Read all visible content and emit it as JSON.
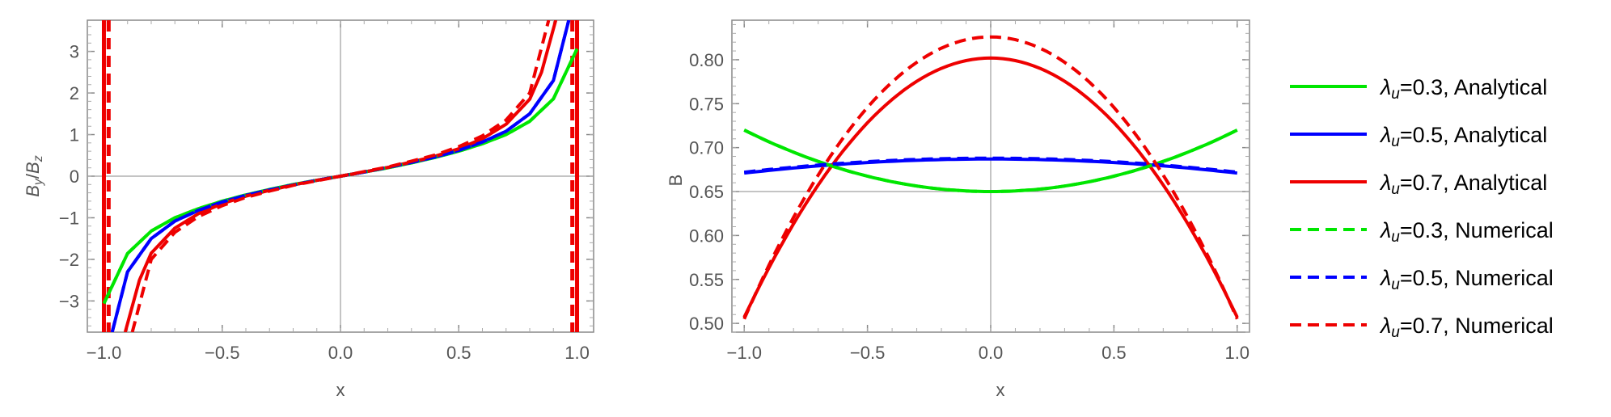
{
  "chart_data": [
    {
      "type": "line",
      "xlabel": "x",
      "ylabel_parts": {
        "base": "B",
        "sub1": "y",
        "slash": "/",
        "sub2": "z"
      },
      "xlim": [
        -1.07,
        1.07
      ],
      "ylim": [
        -3.75,
        3.75
      ],
      "xticks": [
        "-1.0",
        "-0.5",
        "0.0",
        "0.5",
        "1.0"
      ],
      "xtick_values": [
        -1.0,
        -0.5,
        0.0,
        0.5,
        1.0
      ],
      "yticks": [
        "-3",
        "-2",
        "-1",
        "0",
        "1",
        "2",
        "3"
      ],
      "ytick_values": [
        -3,
        -2,
        -1,
        0,
        1,
        2,
        3
      ],
      "grid": false,
      "series": [
        {
          "lambda": 0.3,
          "kind": "Analytical",
          "color": "#00e600",
          "dashed": false,
          "x": [
            -1.0,
            -0.9,
            -0.8,
            -0.7,
            -0.6,
            -0.5,
            -0.4,
            -0.3,
            -0.2,
            -0.1,
            0.0,
            0.1,
            0.2,
            0.3,
            0.4,
            0.5,
            0.6,
            0.7,
            0.8,
            0.9,
            1.0
          ],
          "y": [
            -3.06,
            -1.86,
            -1.32,
            -1.0,
            -0.78,
            -0.6,
            -0.45,
            -0.32,
            -0.2,
            -0.1,
            0.0,
            0.1,
            0.2,
            0.32,
            0.45,
            0.6,
            0.78,
            1.0,
            1.32,
            1.86,
            3.06
          ]
        },
        {
          "lambda": 0.5,
          "kind": "Analytical",
          "color": "#0000ff",
          "dashed": false,
          "x": [
            -0.965,
            -0.9,
            -0.8,
            -0.7,
            -0.6,
            -0.5,
            -0.4,
            -0.3,
            -0.2,
            -0.1,
            0.0,
            0.1,
            0.2,
            0.3,
            0.4,
            0.5,
            0.6,
            0.7,
            0.8,
            0.9,
            0.965
          ],
          "y": [
            -3.75,
            -2.3,
            -1.5,
            -1.08,
            -0.82,
            -0.62,
            -0.46,
            -0.33,
            -0.21,
            -0.1,
            0.0,
            0.1,
            0.21,
            0.33,
            0.46,
            0.62,
            0.82,
            1.08,
            1.5,
            2.3,
            3.75
          ]
        },
        {
          "lambda": 0.7,
          "kind": "Analytical",
          "color": "#ee0000",
          "dashed": false,
          "x": [
            -0.91,
            -0.85,
            -0.8,
            -0.7,
            -0.6,
            -0.5,
            -0.4,
            -0.3,
            -0.2,
            -0.1,
            0.0,
            0.1,
            0.2,
            0.3,
            0.4,
            0.5,
            0.6,
            0.7,
            0.8,
            0.85,
            0.91
          ],
          "y": [
            -3.75,
            -2.5,
            -1.85,
            -1.25,
            -0.9,
            -0.66,
            -0.48,
            -0.34,
            -0.21,
            -0.1,
            0.0,
            0.1,
            0.21,
            0.34,
            0.48,
            0.66,
            0.9,
            1.25,
            1.85,
            2.5,
            3.75
          ]
        },
        {
          "lambda": 0.3,
          "kind": "Numerical",
          "color": "#00e600",
          "dashed": true,
          "x": [
            -1.0,
            -0.9,
            -0.8,
            -0.7,
            -0.6,
            -0.5,
            -0.4,
            -0.3,
            -0.2,
            -0.1,
            0.0,
            0.1,
            0.2,
            0.3,
            0.4,
            0.5,
            0.6,
            0.7,
            0.8,
            0.9,
            1.0
          ],
          "y": [
            -3.06,
            -1.86,
            -1.32,
            -1.0,
            -0.78,
            -0.6,
            -0.45,
            -0.32,
            -0.2,
            -0.1,
            0.0,
            0.1,
            0.2,
            0.32,
            0.45,
            0.6,
            0.78,
            1.0,
            1.32,
            1.86,
            3.06
          ]
        },
        {
          "lambda": 0.5,
          "kind": "Numerical",
          "color": "#0000ff",
          "dashed": true,
          "x": [
            -0.965,
            -0.9,
            -0.8,
            -0.7,
            -0.6,
            -0.5,
            -0.4,
            -0.3,
            -0.2,
            -0.1,
            0.0,
            0.1,
            0.2,
            0.3,
            0.4,
            0.5,
            0.6,
            0.7,
            0.8,
            0.9,
            0.965
          ],
          "y": [
            -3.75,
            -2.3,
            -1.5,
            -1.08,
            -0.82,
            -0.62,
            -0.46,
            -0.33,
            -0.21,
            -0.1,
            0.0,
            0.1,
            0.21,
            0.33,
            0.46,
            0.62,
            0.82,
            1.08,
            1.5,
            2.3,
            3.75
          ]
        },
        {
          "lambda": 0.7,
          "kind": "Numerical",
          "color": "#ee0000",
          "dashed": true,
          "x": [
            -0.88,
            -0.8,
            -0.7,
            -0.6,
            -0.5,
            -0.4,
            -0.3,
            -0.2,
            -0.1,
            0.0,
            0.1,
            0.2,
            0.3,
            0.4,
            0.5,
            0.6,
            0.7,
            0.8,
            0.88
          ],
          "y": [
            -3.75,
            -2.0,
            -1.35,
            -0.97,
            -0.71,
            -0.51,
            -0.36,
            -0.22,
            -0.11,
            0.0,
            0.11,
            0.22,
            0.36,
            0.51,
            0.71,
            0.97,
            1.35,
            2.0,
            3.75
          ]
        }
      ],
      "vertical_lines": [
        {
          "x": -1.0,
          "color": "#ee0000",
          "dashed": false
        },
        {
          "x": 1.0,
          "color": "#ee0000",
          "dashed": false
        },
        {
          "x": -0.98,
          "color": "#ee0000",
          "dashed": true
        },
        {
          "x": 0.98,
          "color": "#ee0000",
          "dashed": true
        }
      ]
    },
    {
      "type": "line",
      "xlabel": "x",
      "ylabel": "B",
      "xlim": [
        -1.05,
        1.05
      ],
      "ylim": [
        0.49,
        0.845
      ],
      "xticks": [
        "-1.0",
        "-0.5",
        "0.0",
        "0.5",
        "1.0"
      ],
      "xtick_values": [
        -1.0,
        -0.5,
        0.0,
        0.5,
        1.0
      ],
      "yticks": [
        "0.50",
        "0.55",
        "0.60",
        "0.65",
        "0.70",
        "0.75",
        "0.80"
      ],
      "ytick_values": [
        0.5,
        0.55,
        0.6,
        0.65,
        0.7,
        0.75,
        0.8
      ],
      "origin_y": 0.65,
      "grid": false,
      "series": [
        {
          "lambda": 0.3,
          "kind": "Analytical",
          "color": "#00e600",
          "dashed": false,
          "center": 0.65,
          "edge": 0.72
        },
        {
          "lambda": 0.5,
          "kind": "Analytical",
          "color": "#0000ff",
          "dashed": false,
          "center": 0.687,
          "edge": 0.671
        },
        {
          "lambda": 0.7,
          "kind": "Analytical",
          "color": "#ee0000",
          "dashed": false,
          "center": 0.802,
          "edge": 0.507
        },
        {
          "lambda": 0.3,
          "kind": "Numerical",
          "color": "#00e600",
          "dashed": true,
          "center": 0.65,
          "edge": 0.72
        },
        {
          "lambda": 0.5,
          "kind": "Numerical",
          "color": "#0000ff",
          "dashed": true,
          "center": 0.688,
          "edge": 0.672
        },
        {
          "lambda": 0.7,
          "kind": "Numerical",
          "color": "#ee0000",
          "dashed": true,
          "center": 0.826,
          "edge": 0.505
        }
      ]
    }
  ],
  "legend": {
    "placement": "right",
    "entries": [
      {
        "symbol": "λ",
        "sub": "u",
        "text": "=0.3, Analytical",
        "color": "#00e600",
        "dashed": false
      },
      {
        "symbol": "λ",
        "sub": "u",
        "text": "=0.5, Analytical",
        "color": "#0000ff",
        "dashed": false
      },
      {
        "symbol": "λ",
        "sub": "u",
        "text": "=0.7, Analytical",
        "color": "#ee0000",
        "dashed": false
      },
      {
        "symbol": "λ",
        "sub": "u",
        "text": "=0.3, Numerical",
        "color": "#00e600",
        "dashed": true
      },
      {
        "symbol": "λ",
        "sub": "u",
        "text": "=0.5, Numerical",
        "color": "#0000ff",
        "dashed": true
      },
      {
        "symbol": "λ",
        "sub": "u",
        "text": "=0.7, Numerical",
        "color": "#ee0000",
        "dashed": true
      }
    ]
  }
}
